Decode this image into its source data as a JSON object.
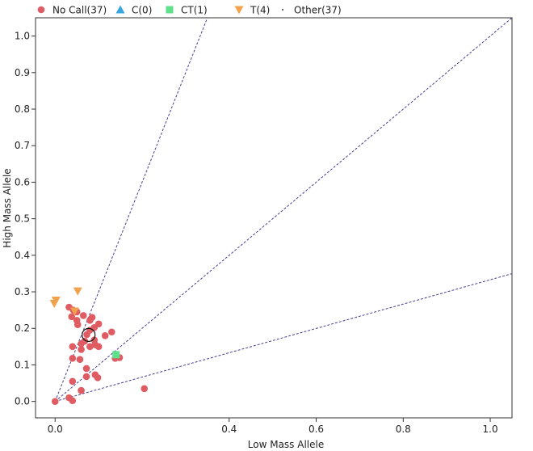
{
  "chart_data": {
    "type": "scatter",
    "xlabel": "Low Mass Allele",
    "ylabel": "High Mass Allele",
    "xlim": [
      -0.045,
      1.05
    ],
    "ylim": [
      -0.045,
      1.05
    ],
    "x_ticks": [
      {
        "value": 0.0,
        "label": "0.0"
      },
      {
        "value": 0.4,
        "label": "0.4"
      },
      {
        "value": 0.6,
        "label": "0.6"
      },
      {
        "value": 0.8,
        "label": "0.8"
      },
      {
        "value": 1.0,
        "label": "1.0"
      }
    ],
    "y_ticks": [
      {
        "value": 0.0,
        "label": "0.0"
      },
      {
        "value": 0.1,
        "label": "0.1"
      },
      {
        "value": 0.2,
        "label": "0.2"
      },
      {
        "value": 0.3,
        "label": "0.3"
      },
      {
        "value": 0.4,
        "label": "0.4"
      },
      {
        "value": 0.5,
        "label": "0.5"
      },
      {
        "value": 0.6,
        "label": "0.6"
      },
      {
        "value": 0.7,
        "label": "0.7"
      },
      {
        "value": 0.8,
        "label": "0.8"
      },
      {
        "value": 0.9,
        "label": "0.9"
      },
      {
        "value": 1.0,
        "label": "1.0"
      }
    ],
    "grid": false,
    "legend_position": "top",
    "legend": [
      {
        "label": "No Call(37)",
        "marker": "circle",
        "color": "#e05c63"
      },
      {
        "label": "C(0)",
        "marker": "triangle-up",
        "color": "#3aa6e0"
      },
      {
        "label": "CT(1)",
        "marker": "square",
        "color": "#5fe08a"
      },
      {
        "label": "T(4)",
        "marker": "triangle-down",
        "color": "#f0a24c"
      },
      {
        "label": "Other(37)",
        "marker": "dot",
        "color": "#333333"
      }
    ],
    "cluster_lines": [
      {
        "slope": 3.0,
        "color": "#4a3d8f"
      },
      {
        "slope": 1.0,
        "color": "#4a3d8f"
      },
      {
        "slope": 0.333,
        "color": "#4a3d8f"
      }
    ],
    "series": [
      {
        "name": "No Call(37)",
        "marker": "circle",
        "color": "#e05c63",
        "points": [
          [
            0.0,
            0.0
          ],
          [
            0.032,
            0.01
          ],
          [
            0.04,
            0.002
          ],
          [
            0.06,
            0.03
          ],
          [
            0.04,
            0.055
          ],
          [
            0.072,
            0.068
          ],
          [
            0.092,
            0.073
          ],
          [
            0.098,
            0.065
          ],
          [
            0.072,
            0.09
          ],
          [
            0.04,
            0.118
          ],
          [
            0.057,
            0.115
          ],
          [
            0.04,
            0.15
          ],
          [
            0.06,
            0.142
          ],
          [
            0.08,
            0.15
          ],
          [
            0.06,
            0.158
          ],
          [
            0.068,
            0.165
          ],
          [
            0.09,
            0.168
          ],
          [
            0.092,
            0.155
          ],
          [
            0.115,
            0.18
          ],
          [
            0.13,
            0.19
          ],
          [
            0.1,
            0.212
          ],
          [
            0.09,
            0.202
          ],
          [
            0.08,
            0.195
          ],
          [
            0.08,
            0.222
          ],
          [
            0.085,
            0.23
          ],
          [
            0.065,
            0.235
          ],
          [
            0.05,
            0.222
          ],
          [
            0.052,
            0.21
          ],
          [
            0.038,
            0.232
          ],
          [
            0.032,
            0.258
          ],
          [
            0.042,
            0.25
          ],
          [
            0.05,
            0.245
          ],
          [
            0.148,
            0.12
          ],
          [
            0.138,
            0.118
          ],
          [
            0.1,
            0.15
          ],
          [
            0.073,
            0.183
          ],
          [
            0.205,
            0.035
          ]
        ]
      },
      {
        "name": "CT(1)",
        "marker": "square",
        "color": "#5fe08a",
        "points": [
          [
            0.14,
            0.128
          ]
        ]
      },
      {
        "name": "T(4)",
        "marker": "triangle-down",
        "color": "#f0a24c",
        "points": [
          [
            0.002,
            0.277
          ],
          [
            -0.002,
            0.268
          ],
          [
            0.052,
            0.302
          ],
          [
            0.045,
            0.247
          ]
        ]
      }
    ],
    "highlight": {
      "point": [
        0.077,
        0.182
      ],
      "marker": "ring",
      "color": "#111111"
    }
  }
}
